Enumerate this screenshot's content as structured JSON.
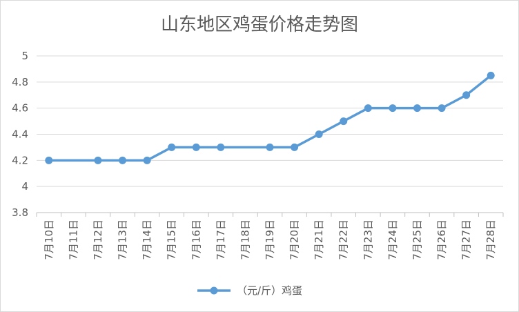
{
  "chart_data": {
    "type": "line",
    "title": "山东地区鸡蛋价格走势图",
    "xlabel": "",
    "ylabel": "",
    "categories": [
      "7月10日",
      "7月11日",
      "7月12日",
      "7月13日",
      "7月14日",
      "7月15日",
      "7月16日",
      "7月17日",
      "7月18日",
      "7月19日",
      "7月20日",
      "7月21日",
      "7月22日",
      "7月23日",
      "7月24日",
      "7月25日",
      "7月26日",
      "7月27日",
      "7月28日"
    ],
    "series": [
      {
        "name": "（元/斤）鸡蛋",
        "color": "#5b9bd5",
        "values": [
          4.2,
          null,
          4.2,
          4.2,
          4.2,
          4.3,
          4.3,
          4.3,
          null,
          4.3,
          4.3,
          4.4,
          4.5,
          4.6,
          4.6,
          4.6,
          4.6,
          4.7,
          4.85
        ]
      }
    ],
    "ylim": [
      3.8,
      5
    ],
    "yticks": [
      "3.8",
      "4",
      "4.2",
      "4.4",
      "4.6",
      "4.8",
      "5"
    ],
    "grid": true,
    "legend": "bottom"
  }
}
